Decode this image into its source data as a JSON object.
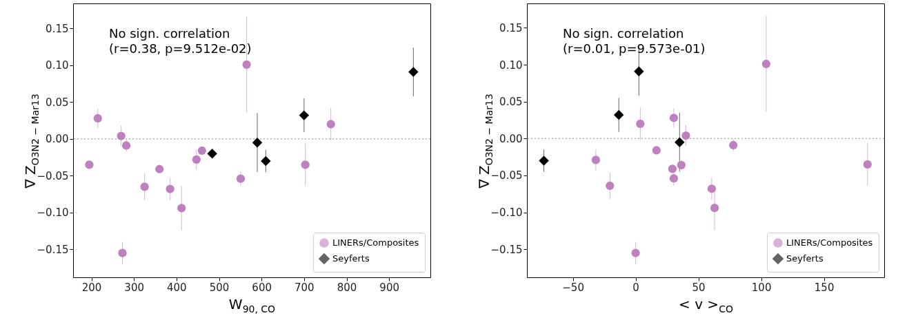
{
  "chart_data": [
    {
      "type": "scatter",
      "xlabel": "W$_{90, CO}$",
      "ylabel": "∇ Z$_{O3N2 − Mar13}$",
      "xlim": [
        157,
        997
      ],
      "ylim": [
        -0.188,
        0.184
      ],
      "xticks": [
        200,
        300,
        400,
        500,
        600,
        700,
        800,
        900
      ],
      "yticks": [
        {
          "value": -0.15,
          "label": "−0.15"
        },
        {
          "value": -0.1,
          "label": "−0.10"
        },
        {
          "value": -0.05,
          "label": "−0.05"
        },
        {
          "value": 0,
          "label": "0.00"
        },
        {
          "value": 0.05,
          "label": "0.05"
        },
        {
          "value": 0.1,
          "label": "0.10"
        },
        {
          "value": 0.15,
          "label": "0.15"
        }
      ],
      "legend": "bottom right",
      "annotations": [
        "No sign. correlation\n(r=0.38, p=9.512e-02)"
      ],
      "ref_lines": [
        {
          "axis": "y",
          "value": 0,
          "color": "#b0b0b0",
          "line_style": "dotted"
        }
      ],
      "series": [
        {
          "name": "LINERs/Composites",
          "color": "#bf80bf",
          "marker": "circle",
          "x": [
            195,
            215,
            270,
            282,
            273,
            325,
            360,
            385,
            412,
            447,
            460,
            551,
            565,
            703,
            763
          ],
          "values": [
            -0.035,
            0.028,
            0.004,
            -0.009,
            -0.155,
            -0.065,
            -0.041,
            -0.068,
            -0.094,
            -0.028,
            -0.016,
            -0.054,
            0.101,
            -0.035,
            0.02
          ],
          "errors": [
            0.003,
            0.013,
            0.014,
            0.008,
            0.015,
            0.018,
            0.003,
            0.015,
            0.03,
            0.014,
            0.004,
            0.01,
            0.065,
            0.029,
            0.022
          ]
        },
        {
          "name": "Seyferts",
          "color": "#000000",
          "marker": "diamond",
          "x": [
            484,
            590,
            610,
            700,
            957
          ],
          "values": [
            -0.02,
            -0.005,
            -0.03,
            0.032,
            0.091
          ],
          "errors": [
            null,
            0.04,
            0.015,
            0.023,
            0.033
          ]
        }
      ]
    },
    {
      "type": "scatter",
      "xlabel": "< v >$_{CO}$",
      "ylabel": "∇ Z$_{O3N2 − Mar13}$",
      "xlim": [
        -86.6,
        198
      ],
      "ylim": [
        -0.188,
        0.183
      ],
      "xticks": [
        {
          "value": -50,
          "label": "−50"
        },
        0,
        50,
        100,
        150
      ],
      "yticks": [
        {
          "value": -0.15,
          "label": "−0.15"
        },
        {
          "value": -0.1,
          "label": "−0.10"
        },
        {
          "value": -0.05,
          "label": "−0.05"
        },
        {
          "value": 0,
          "label": "0.00"
        },
        {
          "value": 0.05,
          "label": "0.05"
        },
        {
          "value": 0.1,
          "label": "0.10"
        },
        {
          "value": 0.15,
          "label": "0.15"
        }
      ],
      "legend": "bottom right",
      "annotations": [
        "No sign. correlation\n(r=0.01, p=9.573e-01)"
      ],
      "ref_lines": [
        {
          "axis": "y",
          "value": 0,
          "color": "#b0b0b0",
          "line_style": "dotted"
        }
      ],
      "series": [
        {
          "name": "LINERs/Composites",
          "color": "#bf80bf",
          "marker": "circle",
          "x": [
            0,
            104,
            30.4,
            3.7,
            40,
            77.8,
            16.6,
            184.7,
            -31.7,
            36.4,
            29.3,
            30.4,
            -20.5,
            60.6,
            62.9
          ],
          "values": [
            -0.155,
            0.101,
            0.028,
            0.02,
            0.004,
            -0.009,
            -0.016,
            -0.035,
            -0.029,
            -0.036,
            -0.041,
            -0.054,
            -0.064,
            -0.068,
            -0.094
          ],
          "errors": [
            0.015,
            0.065,
            0.013,
            0.022,
            0.014,
            0.008,
            0.004,
            0.029,
            0.014,
            0.003,
            0.003,
            0.01,
            0.018,
            0.015,
            0.03
          ]
        },
        {
          "name": "Seyferts",
          "color": "#000000",
          "marker": "diamond",
          "x": [
            2.6,
            -13.4,
            35,
            -73.1
          ],
          "values": [
            0.091,
            0.032,
            -0.005,
            -0.03
          ],
          "errors": [
            0.033,
            0.023,
            0.04,
            0.015
          ]
        }
      ]
    }
  ]
}
